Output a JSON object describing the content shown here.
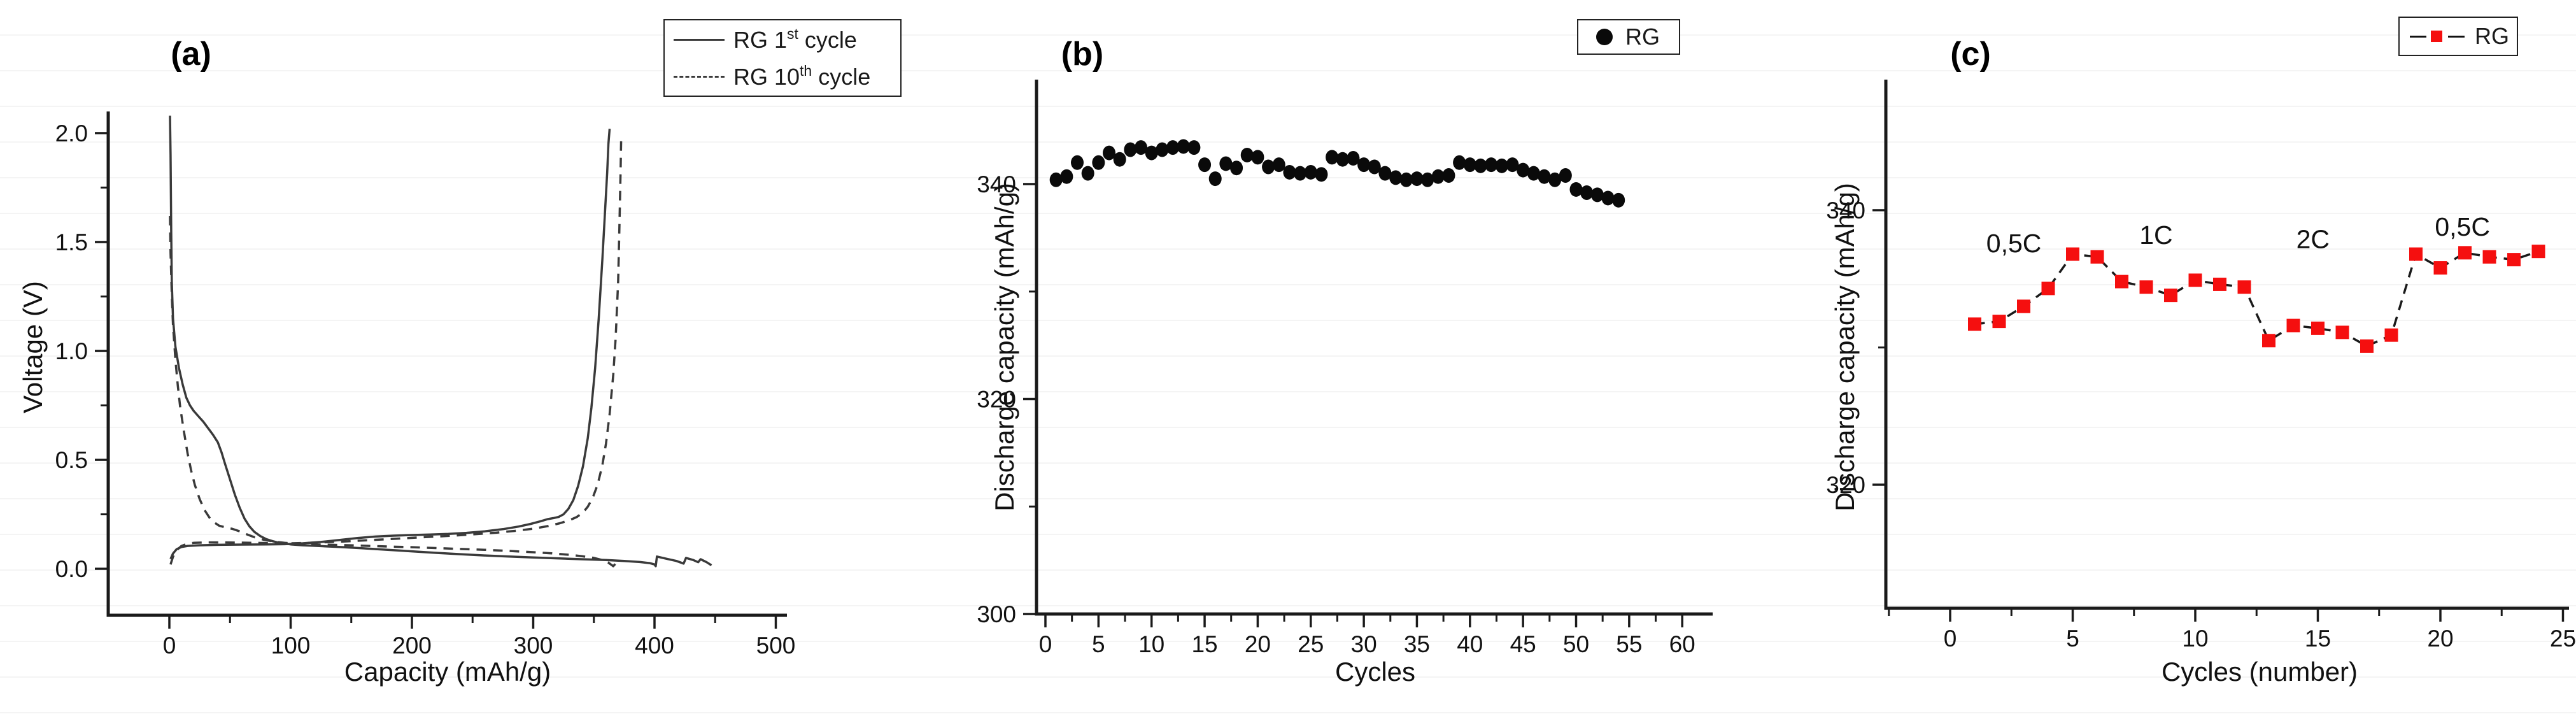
{
  "figure": {
    "background_color": "#ffffff",
    "axis_color": "#1a1a1a",
    "curve_color": "#3a3a3a",
    "scatter_color": "#0a0a0a",
    "red_marker_color": "#f50f0f"
  },
  "chart_data": [
    {
      "id": "a",
      "type": "line",
      "panel_label": "(a)",
      "xlabel": "Capacity (mAh/g)",
      "ylabel": "Voltage (V)",
      "xlim": [
        -50,
        509
      ],
      "ylim": [
        -0.21,
        2.1
      ],
      "x_ticks": [
        0,
        100,
        200,
        300,
        400,
        500
      ],
      "x_minor_ticks": [
        50,
        150,
        250,
        350,
        450
      ],
      "y_ticks": [
        "2.0",
        "1.5",
        "1.0",
        "0.5",
        "0.0"
      ],
      "y_tick_values": [
        2.0,
        1.5,
        1.0,
        0.5,
        0.0
      ],
      "y_minor_ticks": [
        1.75,
        1.25,
        0.75,
        0.25
      ],
      "grid": false,
      "legend_position": "top-right",
      "legend": [
        {
          "pre": "RG 1",
          "sup": "st",
          "post": " cycle",
          "line": "solid"
        },
        {
          "pre": "RG 10",
          "sup": "th",
          "post": " cycle",
          "line": "dashed"
        }
      ],
      "series": [
        {
          "name": "RG 1st cycle discharge",
          "line": "solid",
          "points": [
            [
              0.5,
              2.08
            ],
            [
              1,
              1.9
            ],
            [
              1.5,
              1.55
            ],
            [
              2,
              1.32
            ],
            [
              3,
              1.15
            ],
            [
              5,
              1.02
            ],
            [
              8,
              0.92
            ],
            [
              11,
              0.845
            ],
            [
              14,
              0.785
            ],
            [
              17,
              0.75
            ],
            [
              20,
              0.725
            ],
            [
              24,
              0.7
            ],
            [
              28,
              0.675
            ],
            [
              32,
              0.645
            ],
            [
              36,
              0.615
            ],
            [
              40,
              0.58
            ],
            [
              43,
              0.535
            ],
            [
              46,
              0.48
            ],
            [
              50,
              0.41
            ],
            [
              54,
              0.34
            ],
            [
              58,
              0.28
            ],
            [
              62,
              0.23
            ],
            [
              66,
              0.195
            ],
            [
              70,
              0.17
            ],
            [
              75,
              0.15
            ],
            [
              80,
              0.136
            ],
            [
              85,
              0.127
            ],
            [
              90,
              0.12
            ],
            [
              100,
              0.112
            ],
            [
              110,
              0.108
            ],
            [
              125,
              0.104
            ],
            [
              140,
              0.1
            ],
            [
              160,
              0.094
            ],
            [
              180,
              0.087
            ],
            [
              200,
              0.08
            ],
            [
              220,
              0.073
            ],
            [
              240,
              0.067
            ],
            [
              260,
              0.061
            ],
            [
              280,
              0.056
            ],
            [
              300,
              0.052
            ],
            [
              320,
              0.048
            ],
            [
              340,
              0.044
            ],
            [
              360,
              0.04
            ],
            [
              375,
              0.036
            ],
            [
              388,
              0.031
            ],
            [
              396,
              0.026
            ],
            [
              400,
              0.02
            ],
            [
              401,
              0.012
            ],
            [
              402,
              0.056
            ],
            [
              410,
              0.046
            ],
            [
              418,
              0.036
            ],
            [
              424,
              0.024
            ],
            [
              426,
              0.05
            ],
            [
              432,
              0.04
            ],
            [
              436,
              0.03
            ],
            [
              438,
              0.044
            ],
            [
              443,
              0.03
            ],
            [
              447,
              0.016
            ]
          ]
        },
        {
          "name": "RG 1st cycle charge",
          "line": "solid",
          "points": [
            [
              1,
              0.045
            ],
            [
              3,
              0.07
            ],
            [
              6,
              0.09
            ],
            [
              10,
              0.1
            ],
            [
              15,
              0.105
            ],
            [
              25,
              0.108
            ],
            [
              40,
              0.11
            ],
            [
              60,
              0.111
            ],
            [
              80,
              0.112
            ],
            [
              95,
              0.113
            ],
            [
              110,
              0.117
            ],
            [
              125,
              0.123
            ],
            [
              140,
              0.132
            ],
            [
              155,
              0.141
            ],
            [
              170,
              0.148
            ],
            [
              185,
              0.152
            ],
            [
              200,
              0.155
            ],
            [
              215,
              0.157
            ],
            [
              230,
              0.16
            ],
            [
              245,
              0.165
            ],
            [
              260,
              0.172
            ],
            [
              275,
              0.182
            ],
            [
              288,
              0.194
            ],
            [
              298,
              0.206
            ],
            [
              306,
              0.218
            ],
            [
              312,
              0.228
            ],
            [
              317,
              0.233
            ],
            [
              321,
              0.238
            ],
            [
              325,
              0.25
            ],
            [
              329,
              0.275
            ],
            [
              333,
              0.315
            ],
            [
              337,
              0.38
            ],
            [
              341,
              0.47
            ],
            [
              345,
              0.6
            ],
            [
              348,
              0.74
            ],
            [
              351,
              0.92
            ],
            [
              354,
              1.15
            ],
            [
              357,
              1.42
            ],
            [
              359,
              1.62
            ],
            [
              361,
              1.82
            ],
            [
              362,
              1.95
            ],
            [
              363,
              2.02
            ]
          ]
        },
        {
          "name": "RG 10th cycle discharge",
          "line": "dashed",
          "points": [
            [
              0.5,
              1.62
            ],
            [
              1,
              1.45
            ],
            [
              2,
              1.26
            ],
            [
              3,
              1.12
            ],
            [
              5,
              0.96
            ],
            [
              7,
              0.84
            ],
            [
              9,
              0.74
            ],
            [
              12,
              0.63
            ],
            [
              15,
              0.53
            ],
            [
              18,
              0.45
            ],
            [
              21,
              0.385
            ],
            [
              25,
              0.32
            ],
            [
              29,
              0.27
            ],
            [
              33,
              0.235
            ],
            [
              37,
              0.213
            ],
            [
              41,
              0.198
            ],
            [
              46,
              0.19
            ],
            [
              52,
              0.183
            ],
            [
              58,
              0.172
            ],
            [
              64,
              0.158
            ],
            [
              70,
              0.145
            ],
            [
              78,
              0.133
            ],
            [
              86,
              0.125
            ],
            [
              95,
              0.119
            ],
            [
              105,
              0.115
            ],
            [
              120,
              0.112
            ],
            [
              140,
              0.109
            ],
            [
              160,
              0.106
            ],
            [
              180,
              0.102
            ],
            [
              200,
              0.099
            ],
            [
              220,
              0.095
            ],
            [
              240,
              0.091
            ],
            [
              260,
              0.087
            ],
            [
              280,
              0.082
            ],
            [
              300,
              0.076
            ],
            [
              315,
              0.071
            ],
            [
              330,
              0.064
            ],
            [
              340,
              0.058
            ],
            [
              350,
              0.05
            ],
            [
              357,
              0.04
            ],
            [
              362,
              0.028
            ],
            [
              366,
              0.012
            ],
            [
              369,
              0.03
            ],
            [
              371,
              0.042
            ]
          ]
        },
        {
          "name": "RG 10th cycle charge",
          "line": "dashed",
          "points": [
            [
              1,
              0.02
            ],
            [
              3,
              0.055
            ],
            [
              6,
              0.085
            ],
            [
              10,
              0.105
            ],
            [
              15,
              0.115
            ],
            [
              20,
              0.119
            ],
            [
              30,
              0.121
            ],
            [
              45,
              0.121
            ],
            [
              60,
              0.12
            ],
            [
              80,
              0.118
            ],
            [
              95,
              0.116
            ],
            [
              110,
              0.118
            ],
            [
              130,
              0.122
            ],
            [
              150,
              0.127
            ],
            [
              170,
              0.133
            ],
            [
              190,
              0.139
            ],
            [
              210,
              0.145
            ],
            [
              230,
              0.151
            ],
            [
              250,
              0.158
            ],
            [
              270,
              0.166
            ],
            [
              285,
              0.174
            ],
            [
              300,
              0.184
            ],
            [
              312,
              0.196
            ],
            [
              322,
              0.209
            ],
            [
              330,
              0.223
            ],
            [
              336,
              0.238
            ],
            [
              341,
              0.258
            ],
            [
              345,
              0.285
            ],
            [
              349,
              0.325
            ],
            [
              353,
              0.385
            ],
            [
              357,
              0.475
            ],
            [
              360,
              0.575
            ],
            [
              363,
              0.71
            ],
            [
              366,
              0.89
            ],
            [
              368,
              1.06
            ],
            [
              370,
              1.32
            ],
            [
              371,
              1.56
            ],
            [
              372,
              1.82
            ],
            [
              372.5,
              1.97
            ]
          ]
        }
      ]
    },
    {
      "id": "b",
      "type": "scatter",
      "panel_label": "(b)",
      "xlabel": "Cycles",
      "ylabel": "Discharge capacity (mAh/g)",
      "xlim": [
        0,
        63
      ],
      "ylim": [
        300,
        350
      ],
      "x_ticks": [
        0,
        5,
        10,
        15,
        20,
        25,
        30,
        35,
        40,
        45,
        50,
        55,
        60
      ],
      "x_minor_ticks": [
        2.5,
        7.5,
        12.5,
        17.5,
        22.5,
        27.5,
        32.5,
        37.5,
        42.5,
        47.5,
        52.5,
        57.5
      ],
      "y_ticks": [
        340,
        320,
        300
      ],
      "y_minor_ticks": [
        330,
        310
      ],
      "grid": false,
      "legend_position": "top-right",
      "legend": [
        {
          "label": "RG",
          "marker": "circle"
        }
      ],
      "x": [
        1,
        2,
        3,
        4,
        5,
        6,
        7,
        8,
        9,
        10,
        11,
        12,
        13,
        14,
        15,
        16,
        17,
        18,
        19,
        20,
        21,
        22,
        23,
        24,
        25,
        26,
        27,
        28,
        29,
        30,
        31,
        32,
        33,
        34,
        35,
        36,
        37,
        38,
        39,
        40,
        41,
        42,
        43,
        44,
        45,
        46,
        47,
        48,
        49,
        50,
        51,
        52,
        53,
        54
      ],
      "values": [
        340.4,
        340.7,
        342.0,
        341.0,
        342.0,
        342.9,
        342.3,
        343.2,
        343.4,
        342.9,
        343.2,
        343.4,
        343.5,
        343.4,
        341.8,
        340.5,
        341.9,
        341.5,
        342.7,
        342.5,
        341.6,
        341.8,
        341.1,
        341.0,
        341.1,
        340.9,
        342.5,
        342.3,
        342.4,
        341.8,
        341.6,
        341.0,
        340.6,
        340.4,
        340.5,
        340.4,
        340.7,
        340.8,
        342.0,
        341.8,
        341.7,
        341.8,
        341.7,
        341.8,
        341.3,
        341.0,
        340.7,
        340.4,
        340.8,
        339.5,
        339.2,
        339.0,
        338.7,
        338.5
      ]
    },
    {
      "id": "c",
      "type": "line-scatter",
      "panel_label": "(c)",
      "xlabel": "Cycles (number)",
      "ylabel": "Discharge capacity (mAh/g)",
      "xlim": [
        -2.6,
        25.3
      ],
      "ylim": [
        311,
        350
      ],
      "x_ticks": [
        0,
        5,
        10,
        15,
        20,
        25
      ],
      "x_minor_ticks": [
        -2.5,
        2.5,
        7.5,
        12.5,
        17.5,
        22.5
      ],
      "y_ticks": [
        340,
        320
      ],
      "y_minor_ticks": [
        330
      ],
      "grid": false,
      "legend_position": "top-right",
      "legend": [
        {
          "label": "RG",
          "marker": "square-line"
        }
      ],
      "x": [
        1,
        2,
        3,
        4,
        5,
        6,
        7,
        8,
        9,
        10,
        11,
        12,
        13,
        14,
        15,
        16,
        17,
        18,
        19,
        20,
        21,
        22,
        23,
        24
      ],
      "values": [
        331.7,
        331.9,
        333.0,
        334.3,
        336.8,
        336.6,
        334.8,
        334.4,
        333.8,
        334.9,
        334.6,
        334.4,
        330.5,
        331.6,
        331.4,
        331.1,
        330.1,
        330.9,
        336.8,
        335.8,
        336.9,
        336.6,
        336.4,
        337.0
      ],
      "annotations": [
        {
          "text": "0,5C",
          "x": 2.6,
          "y": 337.6
        },
        {
          "text": "1C",
          "x": 8.4,
          "y": 338.2
        },
        {
          "text": "2C",
          "x": 14.8,
          "y": 337.9
        },
        {
          "text": "0,5C",
          "x": 20.9,
          "y": 338.8
        }
      ]
    }
  ]
}
